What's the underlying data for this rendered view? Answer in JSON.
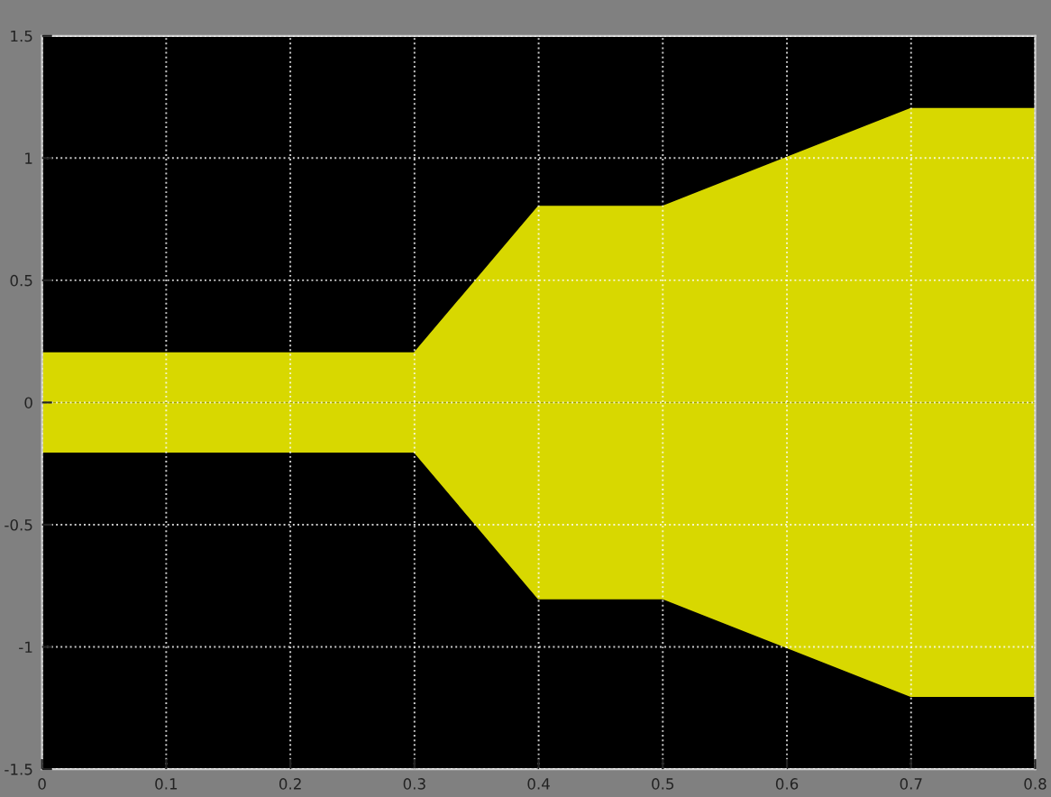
{
  "chart_data": {
    "type": "area",
    "x": [
      0,
      0.3,
      0.4,
      0.5,
      0.7,
      0.8
    ],
    "series": [
      {
        "color": "#d8d800",
        "values": [
          0.2,
          0.2,
          0.8,
          0.8,
          1.2,
          1.2
        ]
      },
      {
        "color": "#d8d800",
        "values": [
          -0.2,
          -0.2,
          -0.8,
          -0.8,
          -1.2,
          -1.2
        ]
      }
    ],
    "xlim": [
      0,
      0.8
    ],
    "ylim": [
      -1.5,
      1.5
    ],
    "xticks": [
      0,
      0.1,
      0.2,
      0.3,
      0.4,
      0.5,
      0.6,
      0.7,
      0.8
    ],
    "yticks": [
      -1.5,
      -1,
      -0.5,
      0,
      0.5,
      1,
      1.5
    ],
    "grid": true,
    "legend": false
  }
}
